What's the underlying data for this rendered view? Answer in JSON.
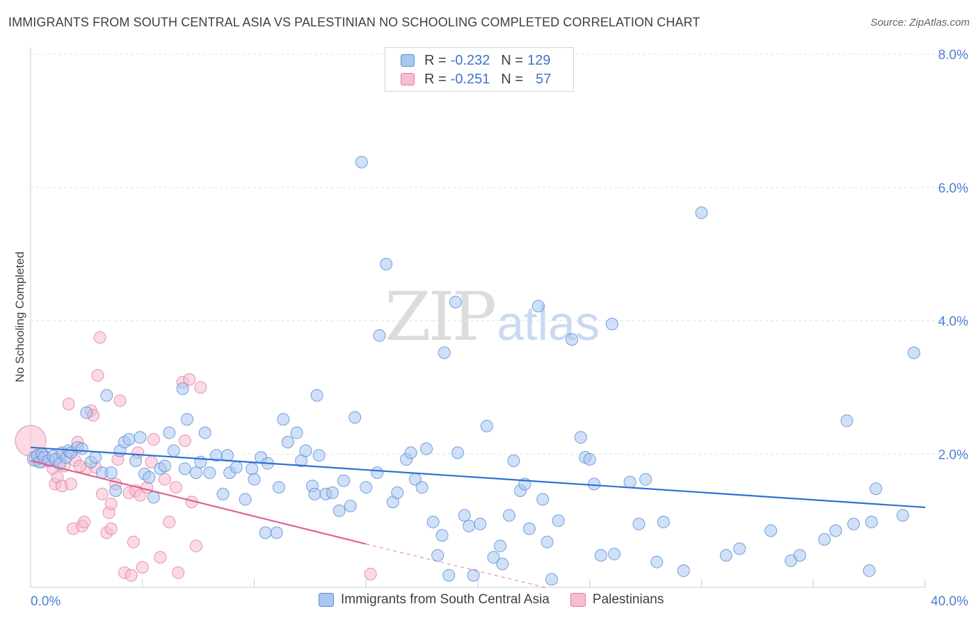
{
  "title": "IMMIGRANTS FROM SOUTH CENTRAL ASIA VS PALESTINIAN NO SCHOOLING COMPLETED CORRELATION CHART",
  "source": "Source: ZipAtlas.com",
  "watermark": {
    "zip": "ZIP",
    "atlas": "atlas"
  },
  "legend": {
    "r_label": "R =",
    "n_label": "N =",
    "rows": [
      {
        "r": "-0.232",
        "n": "129",
        "color": "#a9c7f0",
        "border": "#5a8fd8"
      },
      {
        "r": "-0.251",
        "n": "57",
        "color": "#f7bcd0",
        "border": "#e07aa0"
      }
    ]
  },
  "bottom_legend": [
    {
      "label": "Immigrants from South Central Asia",
      "color": "#a9c7f0",
      "border": "#5a8fd8"
    },
    {
      "label": "Palestinians",
      "color": "#f7bcd0",
      "border": "#e07aa0"
    }
  ],
  "chart_data": {
    "type": "scatter",
    "ylabel": "No Schooling Completed",
    "xlim": [
      0,
      40
    ],
    "ylim": [
      0,
      8
    ],
    "x_tick_labels": [
      {
        "value": 0,
        "label": "0.0%"
      },
      {
        "value": 40,
        "label": "40.0%"
      }
    ],
    "y_tick_labels": [
      {
        "value": 2,
        "label": "2.0%"
      },
      {
        "value": 4,
        "label": "4.0%"
      },
      {
        "value": 6,
        "label": "6.0%"
      },
      {
        "value": 8,
        "label": "8.0%"
      }
    ],
    "grid": true,
    "colors": {
      "blue_fill": "#a9c7f0",
      "blue_stroke": "#5a8fd8",
      "blue_line": "#2f6fd0",
      "pink_fill": "#f7bcd0",
      "pink_stroke": "#e07aa0",
      "pink_line": "#e0608f"
    },
    "series": [
      {
        "points": [
          [
            0.2,
            1.93
          ],
          [
            0.3,
            1.98
          ],
          [
            0.4,
            1.88
          ],
          [
            0.5,
            2.0
          ],
          [
            0.6,
            1.95
          ],
          [
            0.8,
            1.9
          ],
          [
            1.0,
            1.97
          ],
          [
            1.1,
            1.92
          ],
          [
            1.3,
            1.85
          ],
          [
            1.4,
            2.02
          ],
          [
            1.6,
            1.95
          ],
          [
            1.7,
            2.05
          ],
          [
            1.8,
            2.02
          ],
          [
            2.1,
            2.1
          ],
          [
            2.3,
            2.08
          ],
          [
            2.5,
            2.62
          ],
          [
            2.7,
            1.88
          ],
          [
            2.9,
            1.95
          ],
          [
            3.2,
            1.72
          ],
          [
            3.4,
            2.88
          ],
          [
            3.6,
            1.72
          ],
          [
            3.8,
            1.45
          ],
          [
            4.0,
            2.05
          ],
          [
            4.2,
            2.18
          ],
          [
            4.4,
            2.22
          ],
          [
            4.7,
            1.9
          ],
          [
            4.9,
            2.25
          ],
          [
            5.1,
            1.7
          ],
          [
            5.3,
            1.65
          ],
          [
            5.5,
            1.35
          ],
          [
            5.8,
            1.78
          ],
          [
            6.0,
            1.82
          ],
          [
            6.2,
            2.32
          ],
          [
            6.4,
            2.05
          ],
          [
            6.8,
            2.98
          ],
          [
            6.9,
            1.78
          ],
          [
            7.0,
            2.52
          ],
          [
            7.4,
            1.72
          ],
          [
            7.6,
            1.88
          ],
          [
            7.8,
            2.32
          ],
          [
            8.0,
            1.72
          ],
          [
            8.3,
            1.98
          ],
          [
            8.6,
            1.4
          ],
          [
            8.8,
            1.98
          ],
          [
            8.9,
            1.72
          ],
          [
            9.2,
            1.8
          ],
          [
            9.6,
            1.32
          ],
          [
            9.9,
            1.78
          ],
          [
            10.0,
            1.62
          ],
          [
            10.3,
            1.95
          ],
          [
            10.5,
            0.82
          ],
          [
            10.6,
            1.86
          ],
          [
            11.0,
            0.82
          ],
          [
            11.1,
            1.5
          ],
          [
            11.3,
            2.52
          ],
          [
            11.5,
            2.18
          ],
          [
            11.9,
            2.32
          ],
          [
            12.1,
            1.9
          ],
          [
            12.3,
            2.05
          ],
          [
            12.6,
            1.52
          ],
          [
            12.7,
            1.4
          ],
          [
            12.8,
            2.88
          ],
          [
            12.9,
            1.98
          ],
          [
            13.2,
            1.4
          ],
          [
            13.5,
            1.42
          ],
          [
            13.8,
            1.15
          ],
          [
            14.0,
            1.6
          ],
          [
            14.3,
            1.22
          ],
          [
            14.5,
            2.55
          ],
          [
            14.8,
            6.38
          ],
          [
            15.0,
            1.5
          ],
          [
            15.5,
            1.72
          ],
          [
            15.6,
            3.78
          ],
          [
            15.9,
            4.85
          ],
          [
            16.2,
            1.28
          ],
          [
            16.4,
            1.42
          ],
          [
            16.8,
            1.92
          ],
          [
            17.0,
            2.02
          ],
          [
            17.2,
            1.62
          ],
          [
            17.5,
            1.5
          ],
          [
            17.7,
            2.08
          ],
          [
            18.0,
            0.98
          ],
          [
            18.2,
            0.48
          ],
          [
            18.4,
            0.78
          ],
          [
            18.5,
            3.52
          ],
          [
            18.7,
            0.18
          ],
          [
            19.0,
            4.28
          ],
          [
            19.1,
            2.02
          ],
          [
            19.4,
            1.08
          ],
          [
            19.6,
            0.92
          ],
          [
            19.8,
            0.18
          ],
          [
            20.1,
            0.95
          ],
          [
            20.4,
            2.42
          ],
          [
            20.7,
            0.45
          ],
          [
            21.0,
            0.62
          ],
          [
            21.1,
            0.35
          ],
          [
            21.4,
            1.08
          ],
          [
            21.6,
            1.9
          ],
          [
            21.9,
            1.45
          ],
          [
            22.1,
            1.55
          ],
          [
            22.3,
            0.88
          ],
          [
            22.7,
            4.22
          ],
          [
            22.9,
            1.32
          ],
          [
            23.1,
            0.68
          ],
          [
            23.3,
            0.12
          ],
          [
            23.6,
            1.0
          ],
          [
            24.2,
            3.72
          ],
          [
            24.6,
            2.25
          ],
          [
            24.8,
            1.95
          ],
          [
            25.0,
            1.92
          ],
          [
            25.2,
            1.55
          ],
          [
            25.5,
            0.48
          ],
          [
            26.0,
            3.95
          ],
          [
            26.1,
            0.5
          ],
          [
            26.8,
            1.58
          ],
          [
            27.2,
            0.95
          ],
          [
            27.5,
            1.62
          ],
          [
            28.0,
            0.38
          ],
          [
            28.3,
            0.98
          ],
          [
            29.2,
            0.25
          ],
          [
            30.0,
            5.62
          ],
          [
            31.1,
            0.48
          ],
          [
            31.7,
            0.58
          ],
          [
            33.1,
            0.85
          ],
          [
            34.0,
            0.4
          ],
          [
            34.4,
            0.48
          ],
          [
            35.5,
            0.72
          ],
          [
            36.0,
            0.85
          ],
          [
            36.5,
            2.5
          ],
          [
            36.8,
            0.95
          ],
          [
            37.5,
            0.25
          ],
          [
            37.6,
            0.98
          ],
          [
            37.8,
            1.48
          ],
          [
            39.0,
            1.08
          ],
          [
            39.5,
            3.52
          ]
        ]
      },
      {
        "points": [
          [
            0.0,
            2.2
          ],
          [
            0.2,
            1.92
          ],
          [
            0.4,
            1.95
          ],
          [
            0.5,
            1.88
          ],
          [
            0.6,
            1.98
          ],
          [
            0.8,
            1.9
          ],
          [
            1.0,
            1.78
          ],
          [
            1.1,
            1.55
          ],
          [
            1.2,
            1.65
          ],
          [
            1.3,
            1.95
          ],
          [
            1.4,
            1.52
          ],
          [
            1.5,
            1.82
          ],
          [
            1.7,
            2.75
          ],
          [
            1.8,
            1.55
          ],
          [
            1.9,
            0.88
          ],
          [
            2.0,
            1.9
          ],
          [
            2.1,
            2.18
          ],
          [
            2.3,
            0.92
          ],
          [
            2.4,
            0.98
          ],
          [
            2.5,
            1.78
          ],
          [
            2.7,
            2.65
          ],
          [
            2.8,
            2.58
          ],
          [
            2.9,
            1.8
          ],
          [
            3.0,
            3.18
          ],
          [
            3.1,
            3.75
          ],
          [
            3.2,
            1.4
          ],
          [
            3.4,
            0.82
          ],
          [
            3.5,
            1.12
          ],
          [
            3.6,
            0.88
          ],
          [
            3.8,
            1.55
          ],
          [
            3.9,
            1.92
          ],
          [
            4.0,
            2.8
          ],
          [
            4.2,
            0.22
          ],
          [
            4.4,
            1.42
          ],
          [
            4.5,
            0.18
          ],
          [
            4.6,
            0.68
          ],
          [
            4.7,
            1.45
          ],
          [
            4.8,
            2.02
          ],
          [
            4.9,
            1.38
          ],
          [
            5.0,
            0.3
          ],
          [
            5.2,
            1.5
          ],
          [
            5.5,
            2.22
          ],
          [
            5.8,
            0.45
          ],
          [
            6.0,
            1.62
          ],
          [
            6.2,
            0.98
          ],
          [
            6.5,
            1.5
          ],
          [
            6.6,
            0.22
          ],
          [
            6.8,
            3.08
          ],
          [
            6.9,
            2.2
          ],
          [
            7.1,
            3.12
          ],
          [
            7.2,
            1.28
          ],
          [
            7.4,
            0.62
          ],
          [
            7.6,
            3.0
          ],
          [
            5.4,
            1.88
          ],
          [
            3.6,
            1.25
          ],
          [
            2.2,
            1.82
          ],
          [
            15.2,
            0.2
          ]
        ]
      }
    ],
    "trend_lines": [
      {
        "x": [
          0,
          40
        ],
        "y": [
          2.1,
          1.2
        ],
        "style": "solid"
      },
      {
        "x": [
          0,
          15
        ],
        "y": [
          1.9,
          0.65
        ],
        "style": "solid"
      },
      {
        "x": [
          15,
          23
        ],
        "y": [
          0.65,
          0.0
        ],
        "style": "dashed"
      }
    ]
  }
}
